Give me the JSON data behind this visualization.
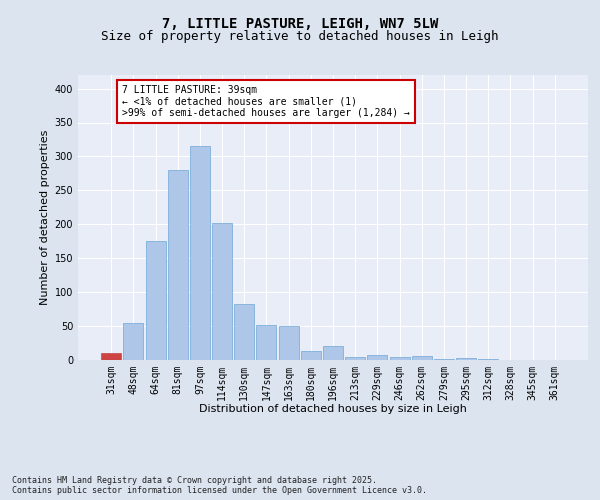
{
  "title_line1": "7, LITTLE PASTURE, LEIGH, WN7 5LW",
  "title_line2": "Size of property relative to detached houses in Leigh",
  "xlabel": "Distribution of detached houses by size in Leigh",
  "ylabel": "Number of detached properties",
  "categories": [
    "31sqm",
    "48sqm",
    "64sqm",
    "81sqm",
    "97sqm",
    "114sqm",
    "130sqm",
    "147sqm",
    "163sqm",
    "180sqm",
    "196sqm",
    "213sqm",
    "229sqm",
    "246sqm",
    "262sqm",
    "279sqm",
    "295sqm",
    "312sqm",
    "328sqm",
    "345sqm",
    "361sqm"
  ],
  "values": [
    10,
    55,
    175,
    280,
    315,
    202,
    83,
    52,
    50,
    14,
    20,
    5,
    7,
    4,
    6,
    2,
    3,
    1,
    0,
    0,
    0
  ],
  "bar_color": "#aec6e8",
  "bar_edge_color": "#6fa8d8",
  "highlight_bar_index": 0,
  "highlight_bar_color": "#cc4444",
  "annotation_text": "7 LITTLE PASTURE: 39sqm\n← <1% of detached houses are smaller (1)\n>99% of semi-detached houses are larger (1,284) →",
  "annotation_box_color": "#ffffff",
  "annotation_box_edge_color": "#cc0000",
  "ylim": [
    0,
    420
  ],
  "yticks": [
    0,
    50,
    100,
    150,
    200,
    250,
    300,
    350,
    400
  ],
  "bg_color": "#dce4f0",
  "plot_bg_color": "#e8edf8",
  "grid_color": "#ffffff",
  "footnote": "Contains HM Land Registry data © Crown copyright and database right 2025.\nContains public sector information licensed under the Open Government Licence v3.0.",
  "title_fontsize": 10,
  "subtitle_fontsize": 9,
  "axis_label_fontsize": 8,
  "tick_fontsize": 7,
  "annotation_fontsize": 7,
  "footnote_fontsize": 6
}
